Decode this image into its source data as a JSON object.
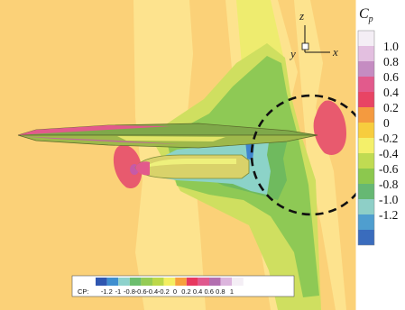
{
  "colorbar": {
    "title": "C",
    "title_sub": "p",
    "ticks": [
      "1.0",
      "0.8",
      "0.6",
      "0.4",
      "0.2",
      "0",
      "-0.2",
      "-0.4",
      "-0.6",
      "-0.8",
      "-1.0",
      "-1.2"
    ],
    "bands": [
      "#f4eef5",
      "#e3bfe0",
      "#c58cc2",
      "#e25a8c",
      "#e84464",
      "#f49a3f",
      "#f7cd3e",
      "#f4f06a",
      "#c0db52",
      "#8cc84e",
      "#66b873",
      "#8ecfc7",
      "#4f9ecf",
      "#3a6cbd"
    ]
  },
  "axes_triad": {
    "z": "z",
    "x": "x",
    "y": "y"
  },
  "horizontal_bar": {
    "prefix": "CP:",
    "ticks": [
      "-1.2",
      "-1",
      "-0.8",
      "-0.6",
      "-0.4",
      "-0.2",
      "0",
      "0.2",
      "0.4",
      "0.6",
      "0.8",
      "1"
    ],
    "colors": [
      "#2f56b0",
      "#3f8fd0",
      "#8ed2cc",
      "#6cbe6e",
      "#96cc55",
      "#bcd84a",
      "#f4ee62",
      "#f7a13d",
      "#e8385f",
      "#e0588e",
      "#b36fb0",
      "#dcb5dd",
      "#f4eef5"
    ]
  },
  "colors": {
    "background": "#fbd178",
    "band_light": "#fde38e",
    "band_yellow": "#eeec6f",
    "band_lime": "#cfdf60",
    "green": "#8ec955",
    "green_dark": "#6fba5e",
    "cyan": "#8cd3c8",
    "blue": "#3f85cf",
    "red": "#e85a6e",
    "magenta": "#c65aa7"
  }
}
